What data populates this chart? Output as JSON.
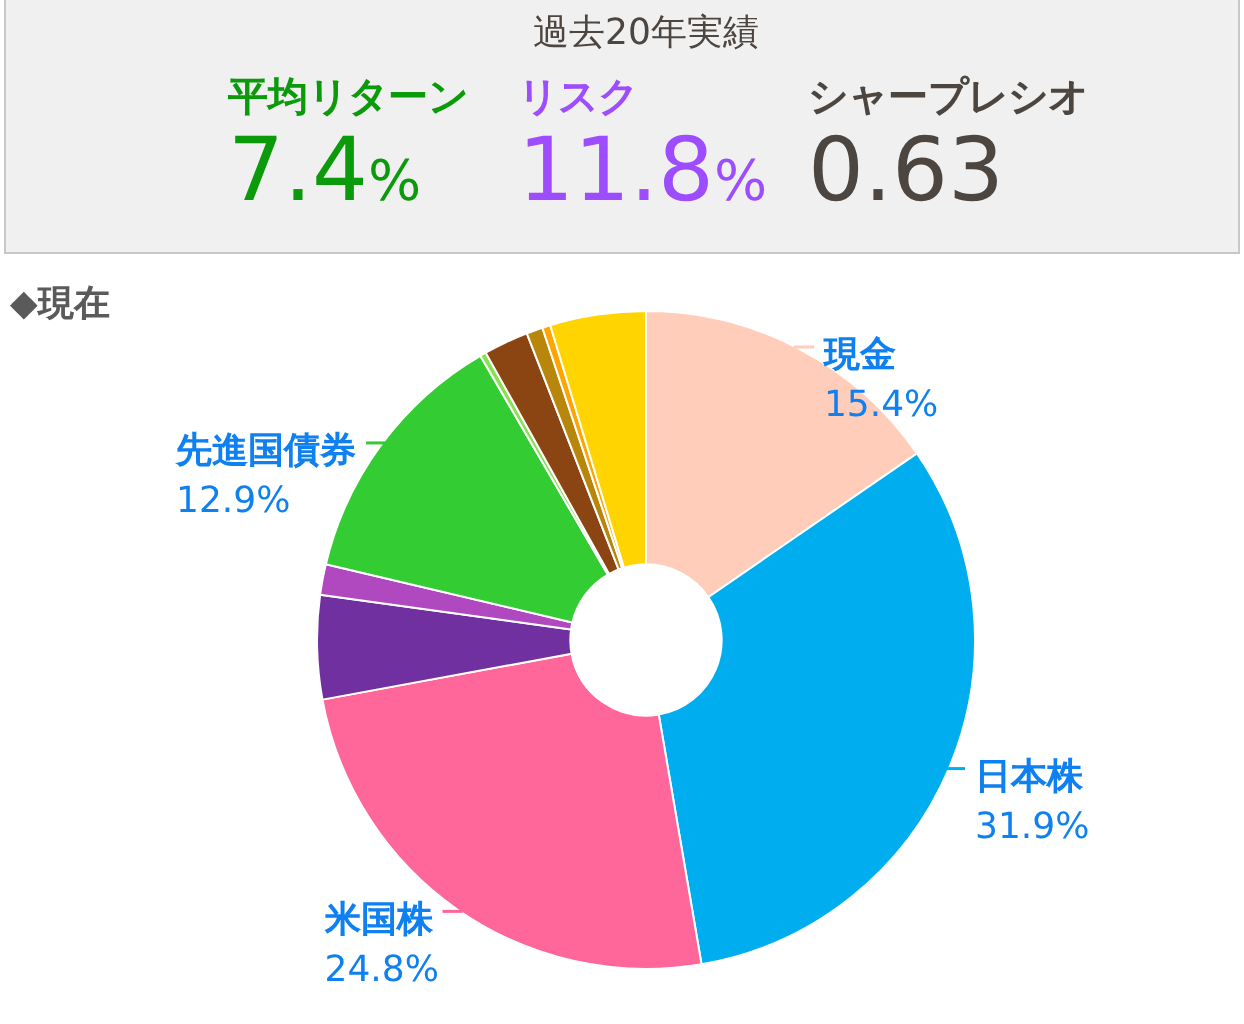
{
  "chart_data": [
    {
      "type": "other",
      "title": "過去20年実績",
      "categories": [
        "平均リターン",
        "リスク",
        "シャープレシオ"
      ],
      "value_labels": [
        "7.4%",
        "11.8%",
        "0.63"
      ]
    },
    {
      "type": "donut",
      "title": "◆現在",
      "categories": [
        "現金",
        "日本株",
        "米国株",
        null,
        null,
        "先進国債券",
        null,
        null,
        null,
        null,
        null
      ],
      "values": [
        15.4,
        31.9,
        24.8,
        5.1,
        1.5,
        12.9,
        0.3,
        2.2,
        0.8,
        0.4,
        4.7
      ],
      "colors": [
        "#ffcdb9",
        "#00aeef",
        "#ff6699",
        "#7030a0",
        "#b048c0",
        "#33cc33",
        "#88e050",
        "#8b4513",
        "#b8860b",
        "#ffa500",
        "#ffd400"
      ],
      "value_labels": [
        "15.4%",
        "31.9%",
        "24.8%",
        null,
        null,
        "12.9%",
        null,
        null,
        null,
        null,
        null
      ]
    }
  ]
}
